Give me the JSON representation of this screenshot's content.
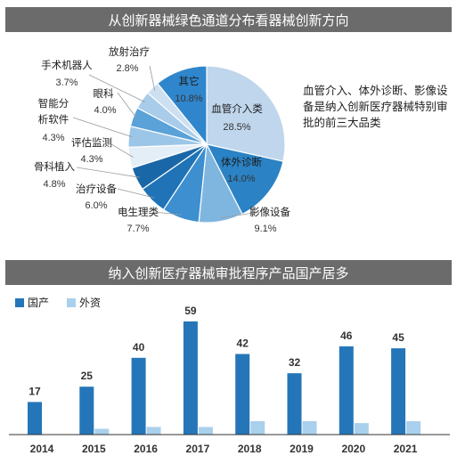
{
  "chart_data": [
    {
      "type": "pie",
      "title": "从创新器械绿色通道分布看器械创新方向",
      "slices": [
        {
          "label": "血管介入类",
          "value": 28.5,
          "pct": "28.5%",
          "color": "#bfd6ec"
        },
        {
          "label": "体外诊断",
          "value": 14.0,
          "pct": "14.0%",
          "color": "#2b82c4"
        },
        {
          "label": "影像设备",
          "value": 9.1,
          "pct": "9.1%",
          "color": "#7fb6e0"
        },
        {
          "label": "电生理类",
          "value": 7.7,
          "pct": "7.7%",
          "color": "#3d8fd0"
        },
        {
          "label": "治疗设备",
          "value": 6.0,
          "pct": "6.0%",
          "color": "#1f73b6"
        },
        {
          "label": "骨科植入",
          "value": 4.8,
          "pct": "4.8%",
          "color": "#1a67a8"
        },
        {
          "label": "评估监测",
          "value": 4.3,
          "pct": "4.3%",
          "color": "#e4eef7"
        },
        {
          "label": "智能分析软件",
          "value": 4.3,
          "pct": "4.3%",
          "color": "#9cc6e8"
        },
        {
          "label": "眼科",
          "value": 4.0,
          "pct": "4.0%",
          "color": "#5aa2d8"
        },
        {
          "label": "手术机器人",
          "value": 3.7,
          "pct": "3.7%",
          "color": "#a9ccea"
        },
        {
          "label": "放射治疗",
          "value": 2.8,
          "pct": "2.8%",
          "color": "#cde0f1"
        },
        {
          "label": "其它",
          "value": 10.8,
          "pct": "10.8%",
          "color": "#2f86cc"
        }
      ],
      "annotation": "血管介入、体外诊断、影像设备是纳入创新医疗器械特别审批的前三大品类"
    },
    {
      "type": "bar",
      "title": "纳入创新医疗器械审批程序产品国产居多",
      "categories": [
        "2014",
        "2015",
        "2016",
        "2017",
        "2018",
        "2019",
        "2020",
        "2021"
      ],
      "series": [
        {
          "name": "国产",
          "values": [
            17,
            25,
            40,
            59,
            42,
            32,
            46,
            45
          ],
          "color": "#2576b8"
        },
        {
          "name": "外资",
          "values": [
            0,
            3,
            4,
            4,
            7,
            7,
            6,
            7
          ],
          "color": "#a9d0ec"
        }
      ],
      "ylim": [
        0,
        65
      ],
      "legend": "top-left"
    }
  ]
}
